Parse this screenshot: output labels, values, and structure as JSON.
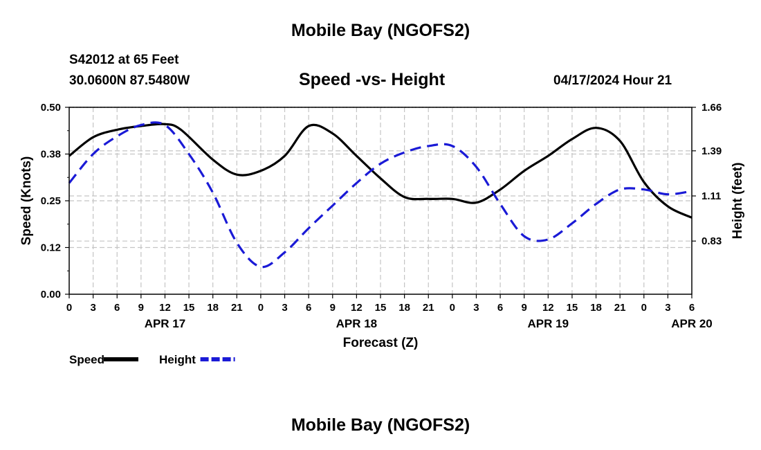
{
  "page": {
    "title_top": "Mobile Bay (NGOFS2)",
    "title_bottom": "Mobile Bay (NGOFS2)",
    "station": "S42012 at 65 Feet",
    "coords": "30.0600N  87.5480W",
    "subtitle": "Speed -vs- Height",
    "datetime": "04/17/2024 Hour 21"
  },
  "chart_data": {
    "type": "line",
    "title": "Speed -vs- Height",
    "xlabel": "Forecast (Z)",
    "ylabel": "Speed (Knots)",
    "y2label": "Height (feet)",
    "ylim": [
      0.0,
      0.5
    ],
    "y2lim": [
      0.5,
      1.66
    ],
    "grid": true,
    "legend_position": "bottom-left",
    "xlim_hours": [
      0,
      78
    ],
    "x_tick_labels": [
      "0",
      "3",
      "6",
      "9",
      "12",
      "15",
      "18",
      "21",
      "0",
      "3",
      "6",
      "9",
      "12",
      "15",
      "18",
      "21",
      "0",
      "3",
      "6",
      "9",
      "12",
      "15",
      "18",
      "21",
      "0",
      "3",
      "6"
    ],
    "y_tick_labels": [
      "0.00",
      "0.12",
      "0.25",
      "0.38",
      "0.50"
    ],
    "y2_tick_labels": [
      "0.83",
      "1.11",
      "1.39",
      "1.66"
    ],
    "date_labels": [
      {
        "label": "APR 17",
        "hour": 12
      },
      {
        "label": "APR 18",
        "hour": 36
      },
      {
        "label": "APR 19",
        "hour": 60
      },
      {
        "label": "APR 20",
        "hour": 78
      }
    ],
    "series": [
      {
        "name": "Speed",
        "axis": "left",
        "color": "#000000",
        "style": "solid",
        "x": [
          0,
          3,
          6,
          9,
          12,
          14,
          18,
          21,
          24,
          27,
          30,
          33,
          36,
          39,
          42,
          45,
          48,
          51,
          54,
          57,
          60,
          63,
          66,
          69,
          72,
          75,
          78
        ],
        "values": [
          0.37,
          0.42,
          0.44,
          0.45,
          0.455,
          0.44,
          0.36,
          0.32,
          0.33,
          0.37,
          0.45,
          0.43,
          0.37,
          0.31,
          0.26,
          0.255,
          0.255,
          0.245,
          0.28,
          0.33,
          0.37,
          0.415,
          0.445,
          0.41,
          0.3,
          0.235,
          0.205
        ]
      },
      {
        "name": "Height",
        "axis": "right",
        "color": "#1a1ad6",
        "style": "dashed",
        "x": [
          0,
          3,
          6,
          9,
          12,
          15,
          18,
          21,
          24,
          27,
          30,
          33,
          36,
          39,
          42,
          45,
          48,
          51,
          54,
          57,
          60,
          63,
          66,
          69,
          72,
          75,
          78
        ],
        "values": [
          1.19,
          1.37,
          1.48,
          1.55,
          1.55,
          1.37,
          1.13,
          0.82,
          0.67,
          0.76,
          0.91,
          1.05,
          1.19,
          1.31,
          1.38,
          1.42,
          1.42,
          1.29,
          1.06,
          0.86,
          0.84,
          0.94,
          1.06,
          1.15,
          1.15,
          1.12,
          1.14
        ]
      }
    ]
  }
}
